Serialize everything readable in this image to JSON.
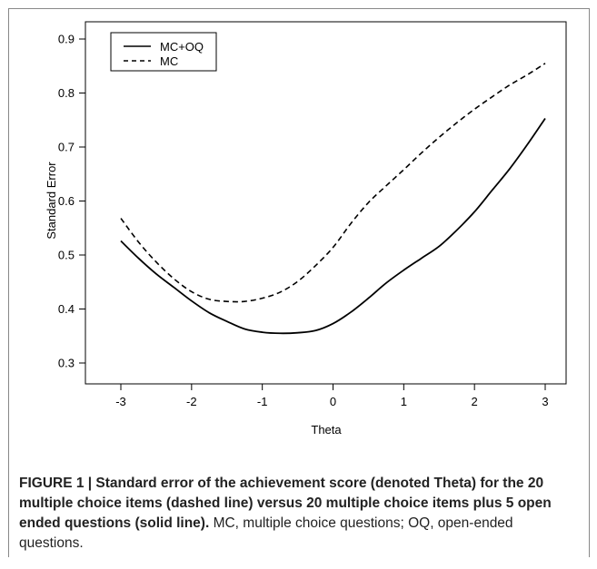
{
  "chart_data": {
    "type": "line",
    "title": "",
    "xlabel": "Theta",
    "ylabel": "Standard Error",
    "xlim": [
      -3,
      3
    ],
    "ylim": [
      0.3,
      0.9
    ],
    "x_ticks": [
      "-3",
      "-2",
      "-1",
      "0",
      "1",
      "2",
      "3"
    ],
    "y_ticks": [
      "0.3",
      "0.4",
      "0.5",
      "0.6",
      "0.7",
      "0.8",
      "0.9"
    ],
    "grid": false,
    "legend_position": "top-left",
    "series": [
      {
        "name": "MC+OQ",
        "style": "solid",
        "color": "#000000",
        "x": [
          -3,
          -2.75,
          -2.5,
          -2.25,
          -2,
          -1.75,
          -1.5,
          -1.25,
          -1,
          -0.75,
          -0.5,
          -0.25,
          0,
          0.25,
          0.5,
          0.75,
          1,
          1.25,
          1.5,
          1.75,
          2,
          2.25,
          2.5,
          2.75,
          3
        ],
        "y": [
          0.526,
          0.494,
          0.465,
          0.44,
          0.415,
          0.393,
          0.377,
          0.363,
          0.357,
          0.355,
          0.356,
          0.36,
          0.373,
          0.394,
          0.42,
          0.448,
          0.472,
          0.494,
          0.516,
          0.546,
          0.58,
          0.62,
          0.66,
          0.705,
          0.753
        ]
      },
      {
        "name": "MC",
        "style": "dashed",
        "color": "#000000",
        "x": [
          -3,
          -2.75,
          -2.5,
          -2.25,
          -2,
          -1.75,
          -1.5,
          -1.25,
          -1,
          -0.75,
          -0.5,
          -0.25,
          0,
          0.25,
          0.5,
          0.75,
          1,
          1.25,
          1.5,
          1.75,
          2,
          2.25,
          2.5,
          2.75,
          3
        ],
        "y": [
          0.568,
          0.524,
          0.487,
          0.456,
          0.432,
          0.418,
          0.414,
          0.414,
          0.42,
          0.431,
          0.451,
          0.48,
          0.514,
          0.558,
          0.597,
          0.628,
          0.658,
          0.689,
          0.718,
          0.745,
          0.77,
          0.793,
          0.815,
          0.834,
          0.855
        ]
      }
    ]
  },
  "caption": {
    "bold": "FIGURE 1 | Standard error of the achievement score (denoted Theta) for the 20 multiple choice items (dashed line) versus 20 multiple choice items plus 5 open ended questions (solid line).",
    "normal": " MC, multiple choice questions; OQ, open-ended questions."
  },
  "colors": {
    "axis": "#000000",
    "caption_text": "#222222",
    "frame_border": "#888888"
  }
}
